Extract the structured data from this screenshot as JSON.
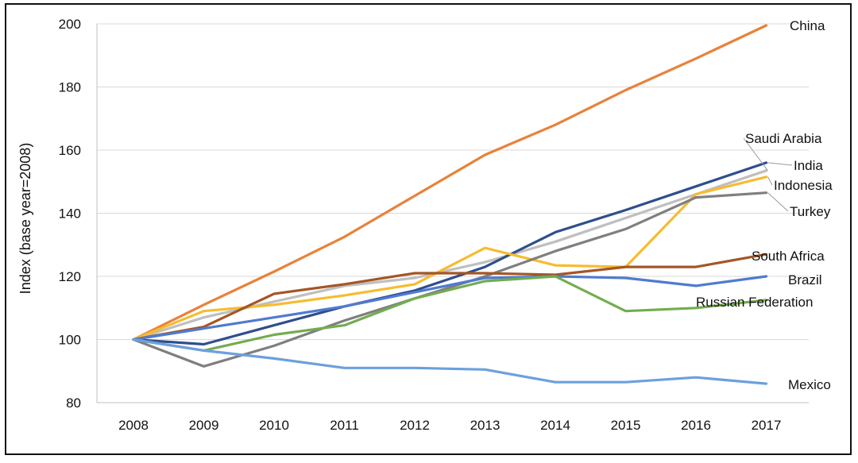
{
  "chart_data": {
    "type": "line",
    "title": "",
    "xlabel": "",
    "ylabel": "Index (base year=2008)",
    "ylim": [
      80,
      200
    ],
    "yticks": [
      80,
      100,
      120,
      140,
      160,
      180,
      200
    ],
    "grid": true,
    "legend": "direct labels at line ends",
    "x": [
      2008,
      2009,
      2010,
      2011,
      2012,
      2013,
      2014,
      2015,
      2016,
      2017
    ],
    "series": [
      {
        "name": "China",
        "color": "#E8823A",
        "values": [
          100,
          111,
          121.5,
          132.5,
          145.5,
          158.5,
          168,
          179,
          189,
          199.5
        ]
      },
      {
        "name": "Saudi Arabia",
        "color": "#BFBFBF",
        "values": [
          100,
          107,
          112,
          117,
          119.5,
          124.5,
          131,
          138.5,
          146,
          153.5
        ]
      },
      {
        "name": "India",
        "color": "#2F4E8C",
        "values": [
          100,
          98.5,
          104.5,
          110.5,
          115.5,
          123,
          134,
          141,
          148.5,
          156
        ]
      },
      {
        "name": "Indonesia",
        "color": "#F6BC30",
        "values": [
          100,
          109,
          111,
          114,
          117.5,
          129,
          123.5,
          123,
          146,
          151.5
        ]
      },
      {
        "name": "Turkey",
        "color": "#7F7F7F",
        "values": [
          100,
          91.5,
          98,
          106,
          113,
          120,
          128,
          135,
          145,
          146.5
        ]
      },
      {
        "name": "South Africa",
        "color": "#A45626",
        "values": [
          100,
          104,
          114.5,
          117.5,
          121,
          121,
          120.5,
          123,
          123,
          127
        ]
      },
      {
        "name": "Brazil",
        "color": "#4F7BD0",
        "values": [
          100,
          103.5,
          107,
          110.5,
          115,
          119.5,
          120,
          119.5,
          117,
          120
        ]
      },
      {
        "name": "Russian Federation",
        "color": "#72AD4E",
        "values": [
          100,
          96.5,
          101.5,
          104.5,
          113,
          118.5,
          120,
          109,
          110,
          112.5
        ]
      },
      {
        "name": "Mexico",
        "color": "#6CA0DC",
        "values": [
          100,
          96.5,
          94,
          91,
          91,
          90.5,
          86.5,
          86.5,
          88,
          86
        ]
      }
    ]
  }
}
